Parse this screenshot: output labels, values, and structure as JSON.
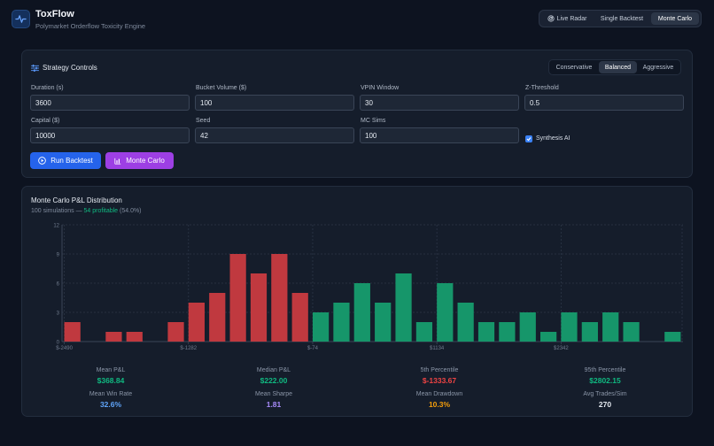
{
  "header": {
    "title": "ToxFlow",
    "subtitle": "Polymarket Orderflow Toxicity Engine",
    "modes": [
      {
        "label": "Live Radar",
        "icon": "radar-icon",
        "active": false
      },
      {
        "label": "Single Backtest",
        "icon": "",
        "active": false
      },
      {
        "label": "Monte Carlo",
        "icon": "",
        "active": true
      }
    ]
  },
  "controls": {
    "title": "Strategy Controls",
    "presets": [
      "Conservative",
      "Balanced",
      "Aggressive"
    ],
    "active_preset": "Balanced",
    "fields": [
      {
        "label": "Duration (s)",
        "value": "3600"
      },
      {
        "label": "Bucket Volume ($)",
        "value": "100"
      },
      {
        "label": "VPIN Window",
        "value": "30"
      },
      {
        "label": "Z-Threshold",
        "value": "0.5"
      },
      {
        "label": "Capital ($)",
        "value": "10000"
      },
      {
        "label": "Seed",
        "value": "42"
      },
      {
        "label": "MC Sims",
        "value": "100"
      }
    ],
    "synthesis_label": "Synthesis AI",
    "synthesis_checked": true,
    "run_label": "Run Backtest",
    "mc_label": "Monte Carlo"
  },
  "results": {
    "title": "Monte Carlo P&L Distribution",
    "sub_prefix": "100 simulations — ",
    "sub_highlight": "54 profitable",
    "sub_suffix": " (54.0%)",
    "stats": [
      {
        "label": "Mean P&L",
        "value": "$368.84",
        "color": "#10b981"
      },
      {
        "label": "Median P&L",
        "value": "$222.00",
        "color": "#10b981"
      },
      {
        "label": "5th Percentile",
        "value": "$-1333.67",
        "color": "#ef4444"
      },
      {
        "label": "95th Percentile",
        "value": "$2802.15",
        "color": "#10b981"
      },
      {
        "label": "Mean Win Rate",
        "value": "32.6%",
        "color": "#60a5fa"
      },
      {
        "label": "Mean Sharpe",
        "value": "1.81",
        "color": "#a78bfa"
      },
      {
        "label": "Mean Drawdown",
        "value": "10.3%",
        "color": "#f59e0b"
      },
      {
        "label": "Avg Trades/Sim",
        "value": "270",
        "color": "#e6ebf2"
      }
    ]
  },
  "chart_data": {
    "type": "bar",
    "title": "Monte Carlo P&L Distribution",
    "xlabel": "",
    "ylabel": "",
    "ylim": [
      0,
      12
    ],
    "y_ticks": [
      "0",
      "3",
      "6",
      "9",
      "12"
    ],
    "x_tick_labels": [
      {
        "index": 0,
        "label": "$-2490"
      },
      {
        "index": 6,
        "label": "$-1282"
      },
      {
        "index": 12,
        "label": "$-74"
      },
      {
        "index": 18,
        "label": "$1134"
      },
      {
        "index": 24,
        "label": "$2342"
      }
    ],
    "values": [
      2,
      0,
      1,
      1,
      0,
      2,
      4,
      5,
      9,
      7,
      9,
      5,
      3,
      4,
      6,
      4,
      7,
      2,
      6,
      4,
      2,
      2,
      3,
      1,
      3,
      2,
      3,
      2,
      0,
      1
    ],
    "negative_color": "#c0393f",
    "positive_color": "#16966a",
    "first_positive_index": 12,
    "grid": true
  }
}
